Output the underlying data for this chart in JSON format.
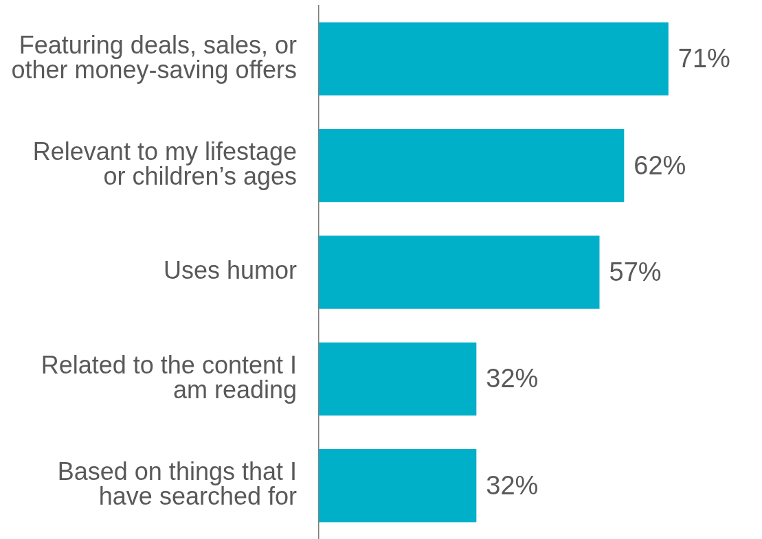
{
  "chart_data": {
    "type": "bar",
    "orientation": "horizontal",
    "categories": [
      "Featuring deals, sales, or other money-saving offers",
      "Relevant to my lifestage or children’s ages",
      "Uses humor",
      "Related to the content I am reading",
      "Based on things that I have searched for"
    ],
    "values": [
      71,
      62,
      57,
      32,
      32
    ],
    "value_labels": [
      "71%",
      "62%",
      "57%",
      "32%",
      "32%"
    ],
    "color": "#00afc8",
    "grid": false,
    "legend": false
  }
}
